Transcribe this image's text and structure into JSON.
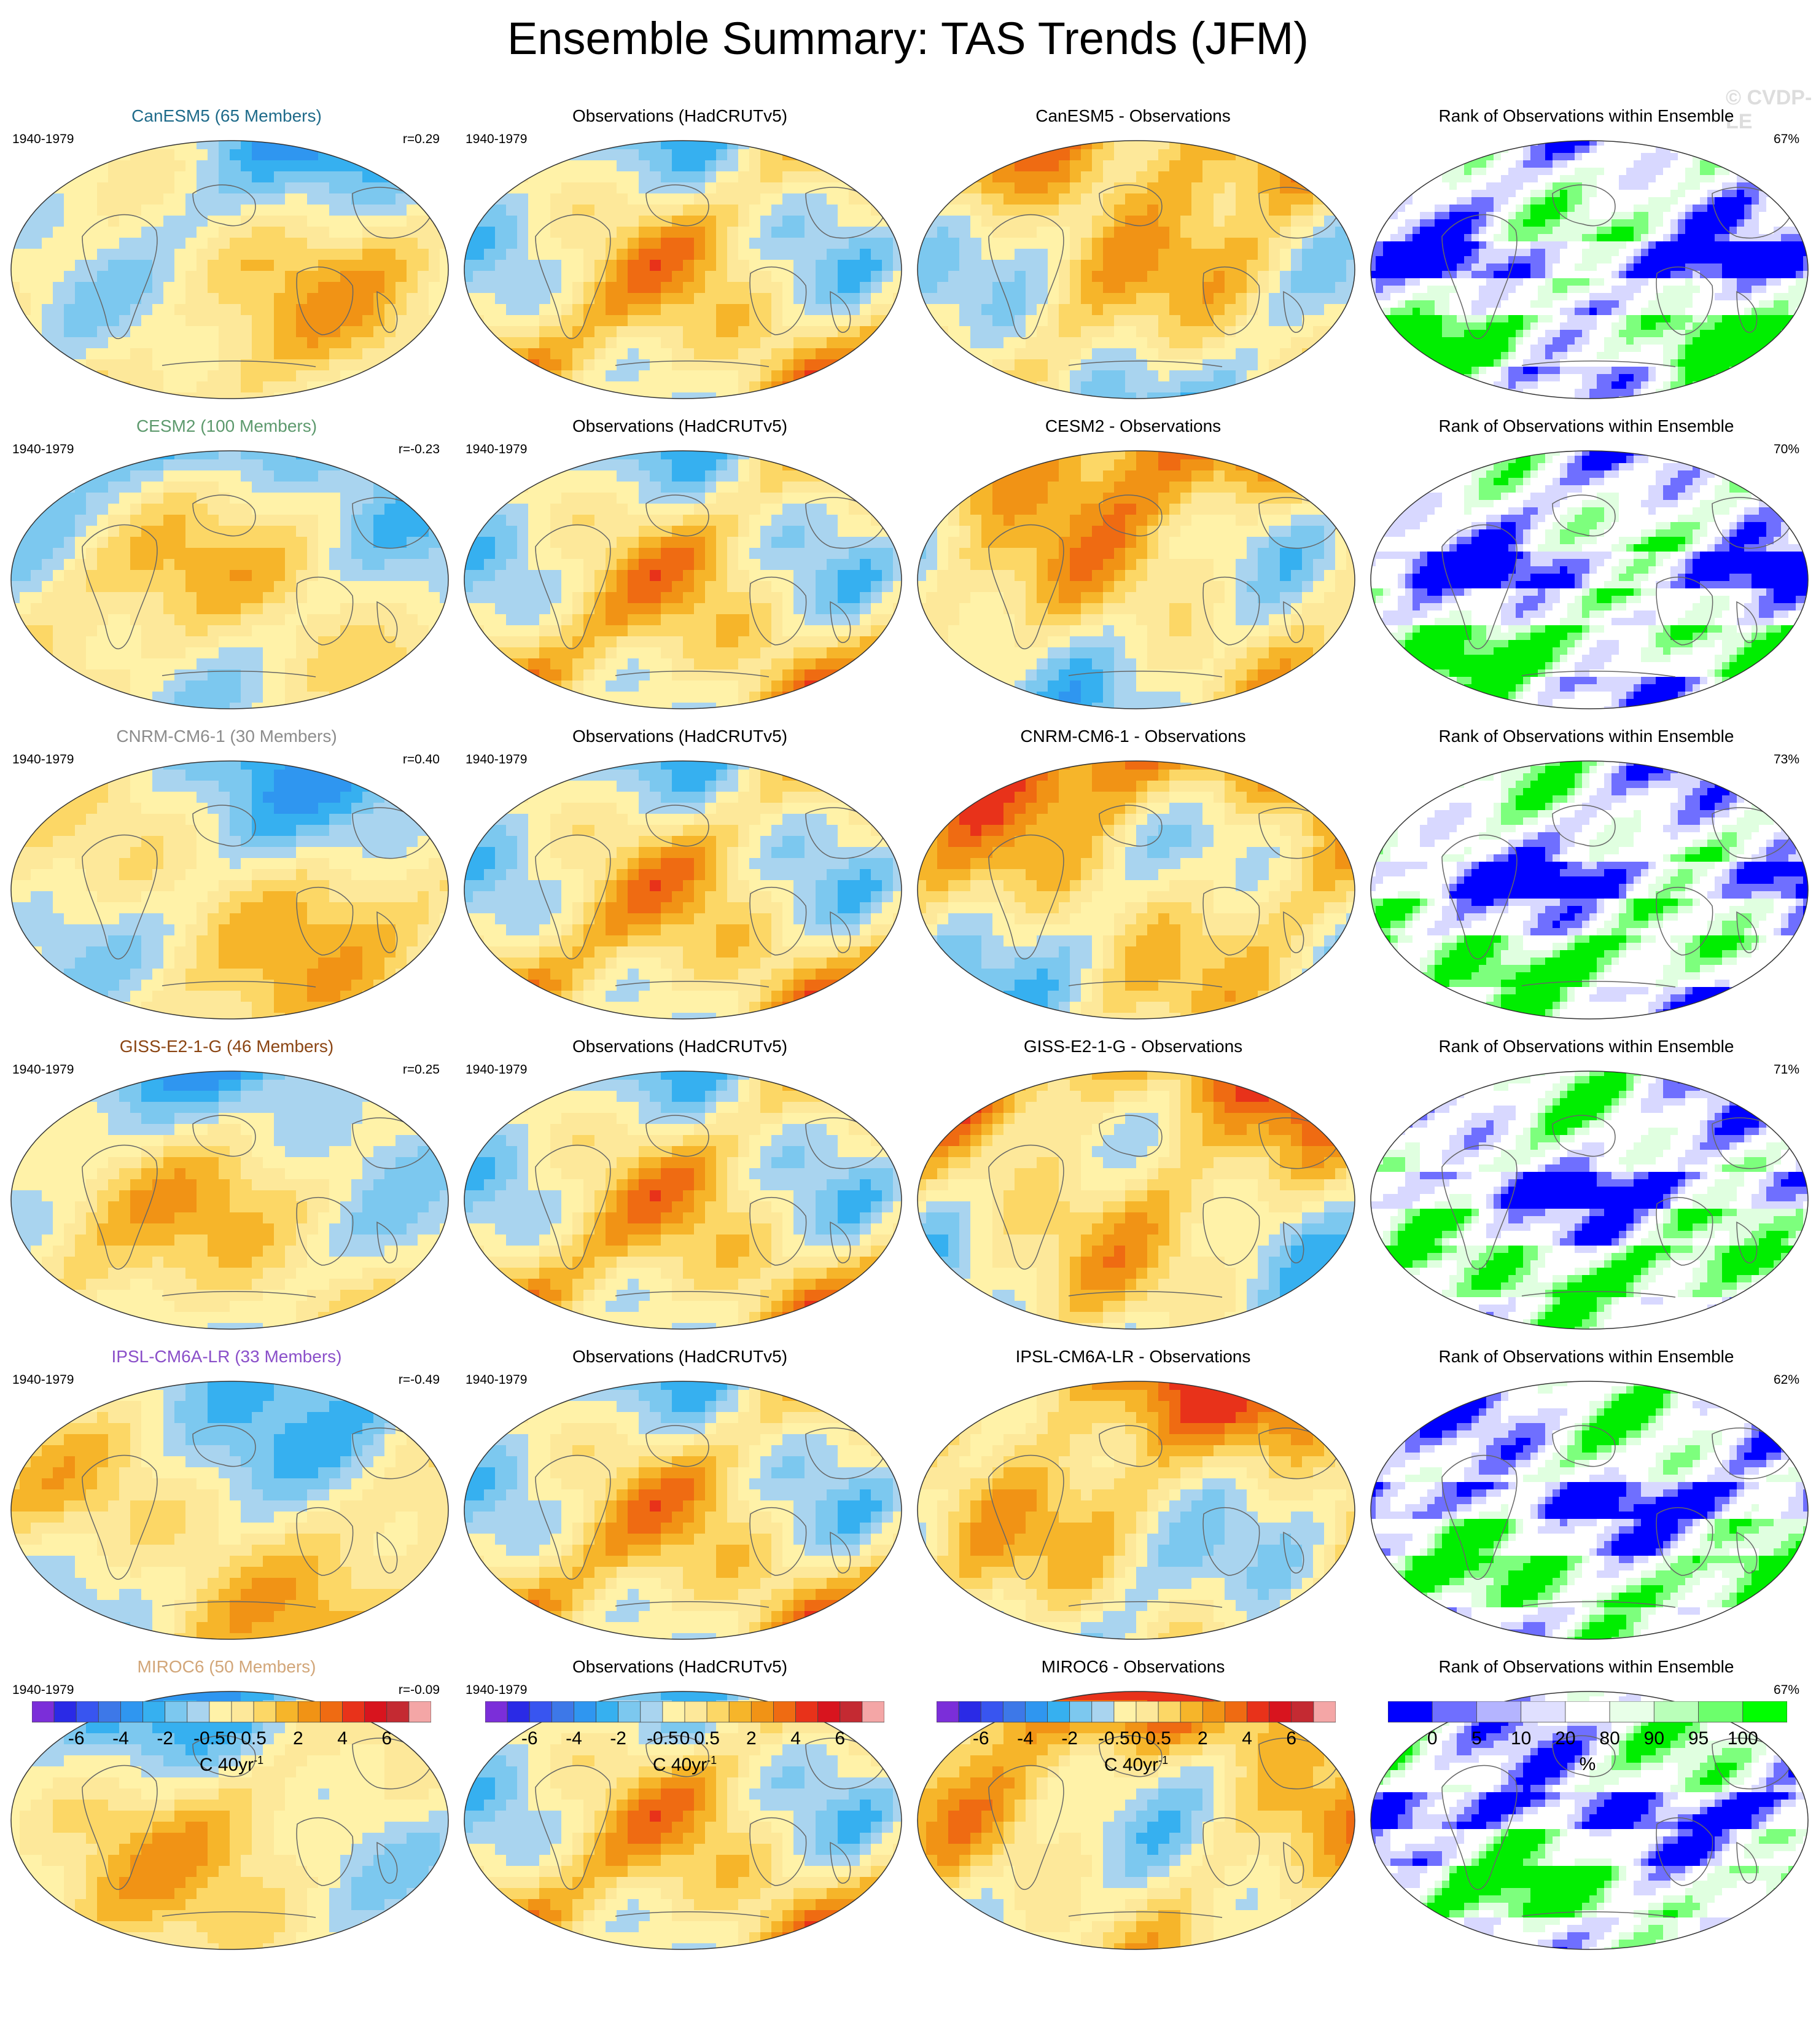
{
  "title": "Ensemble Summary: TAS Trends (JFM)",
  "watermark": "© CVDP-LE",
  "period": "1940-1979",
  "obs_title": "Observations (HadCRUTv5)",
  "rank_title": "Rank of Observations within Ensemble",
  "rows": [
    {
      "model_title": "CanESM5 (65 Members)",
      "title_color": "#1f6b8a",
      "corr": "r=0.29",
      "diff_title": "CanESM5 - Observations",
      "pct": "67%"
    },
    {
      "model_title": "CESM2 (100 Members)",
      "title_color": "#5e9a6e",
      "corr": "r=-0.23",
      "diff_title": "CESM2 - Observations",
      "pct": "70%"
    },
    {
      "model_title": "CNRM-CM6-1 (30 Members)",
      "title_color": "#8c8c8c",
      "corr": "r=0.40",
      "diff_title": "CNRM-CM6-1 - Observations",
      "pct": "73%"
    },
    {
      "model_title": "GISS-E2-1-G (46 Members)",
      "title_color": "#8b4513",
      "corr": "r=0.25",
      "diff_title": "GISS-E2-1-G - Observations",
      "pct": "71%"
    },
    {
      "model_title": "IPSL-CM6A-LR (33 Members)",
      "title_color": "#8a4fc9",
      "corr": "r=-0.49",
      "diff_title": "IPSL-CM6A-LR - Observations",
      "pct": "62%"
    },
    {
      "model_title": "MIROC6 (50 Members)",
      "title_color": "#d2a679",
      "corr": "r=-0.09",
      "diff_title": "MIROC6 - Observations",
      "pct": "67%"
    }
  ],
  "colorbar_trend": {
    "colors": [
      "#7b2ed9",
      "#2a2ae6",
      "#3855f0",
      "#3d78e8",
      "#2f96f0",
      "#36b0f0",
      "#7cc8ef",
      "#a9d4ef",
      "#fff2a8",
      "#fde89a",
      "#fcd766",
      "#f6b52a",
      "#f19315",
      "#ef6b12",
      "#e8321a",
      "#d8141e",
      "#c42a32",
      "#f4a6a6"
    ],
    "ticks": [
      "-6",
      "-4",
      "-2",
      "-0.5",
      "0",
      "0.5",
      "2",
      "4",
      "6"
    ],
    "unit": "C 40yr",
    "unit_sup": "-1"
  },
  "colorbar_rank": {
    "colors": [
      "#0000ff",
      "#6f6fff",
      "#b4b4ff",
      "#e0e0ff",
      "#ffffff",
      "#e8ffe8",
      "#b9ffb9",
      "#6cff6c",
      "#00ff00"
    ],
    "ticks": [
      "0",
      "5",
      "10",
      "20",
      "80",
      "90",
      "95",
      "100"
    ],
    "unit": "%"
  }
}
